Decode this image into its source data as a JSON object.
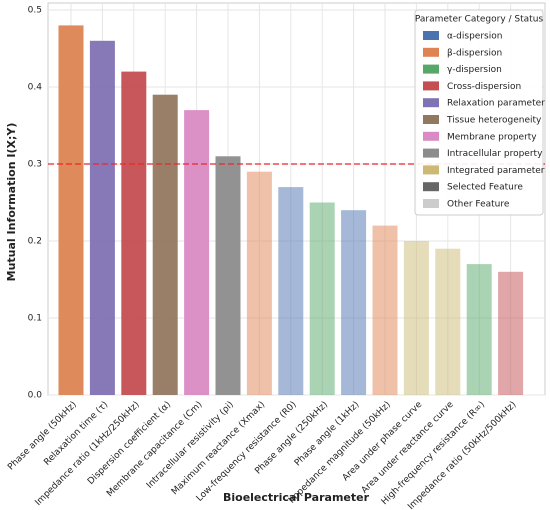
{
  "chart_data": {
    "type": "bar",
    "x_label": "Bioelectrical Parameter",
    "y_label": "Mutual Information I(X;Y)",
    "categories": [
      "Phase angle (50kHz)",
      "Relaxation time (τ)",
      "Impedance ratio (1kHz/250kHz)",
      "Dispersion coefficient (α)",
      "Membrane capacitance (Cm)",
      "Intracellular resistivity (ρi)",
      "Maximum reactance (Xmax)",
      "Low-frequency resistance (R0)",
      "Phase angle (250kHz)",
      "Phase angle (1kHz)",
      "Impedance magnitude (50kHz)",
      "Area under phase curve",
      "Area under reactance curve",
      "High-frequency resistance (R∞)",
      "Impedance ratio (50kHz/500kHz)"
    ],
    "values": [
      0.48,
      0.46,
      0.42,
      0.39,
      0.37,
      0.31,
      0.29,
      0.27,
      0.25,
      0.24,
      0.22,
      0.2,
      0.19,
      0.17,
      0.16
    ],
    "colors": [
      "#dd8452",
      "#8172b3",
      "#c44e52",
      "#937860",
      "#da8bc3",
      "#8c8c8c",
      "#dd8452",
      "#4c72b0",
      "#55a868",
      "#4c72b0",
      "#dd8452",
      "#ccb974",
      "#ccb974",
      "#55a868",
      "#c44e52"
    ],
    "opacities": [
      0.95,
      0.95,
      0.95,
      0.95,
      0.95,
      0.95,
      0.5,
      0.5,
      0.5,
      0.5,
      0.5,
      0.5,
      0.5,
      0.5,
      0.5
    ],
    "threshold": 0.3,
    "threshold_color": "#e8282b",
    "ylim": [
      0,
      0.5
    ],
    "yticks": [
      {
        "value": 0,
        "label": "0.0"
      },
      0.1,
      0.2,
      0.3,
      0.4,
      0.5
    ],
    "grid": true,
    "legend": {
      "title": "Parameter Category / Status",
      "position": "upper right",
      "entries": [
        {
          "name": "α-dispersion",
          "color": "#4c72b0"
        },
        {
          "name": "β-dispersion",
          "color": "#dd8452"
        },
        {
          "name": "γ-dispersion",
          "color": "#55a868"
        },
        {
          "name": "Cross-dispersion",
          "color": "#c44e52"
        },
        {
          "name": "Relaxation parameter",
          "color": "#8172b3"
        },
        {
          "name": "Tissue heterogeneity",
          "color": "#937860"
        },
        {
          "name": "Membrane property",
          "color": "#da8bc3"
        },
        {
          "name": "Intracellular property",
          "color": "#8c8c8c"
        },
        {
          "name": "Integrated parameter",
          "color": "#ccb974"
        },
        {
          "name": "Selected Feature",
          "color": "#666666"
        },
        {
          "name": "Other Feature",
          "color": "#cccccc"
        }
      ]
    }
  }
}
